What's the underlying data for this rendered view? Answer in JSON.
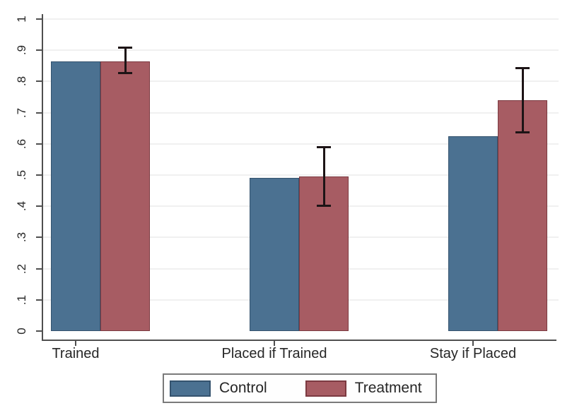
{
  "chart_data": {
    "type": "bar",
    "title": "",
    "categories": [
      "Trained",
      "Placed if Trained",
      "Stay if Placed"
    ],
    "series": [
      {
        "name": "Control",
        "color": "#4b7191",
        "border_color": "#35536e",
        "values": [
          0.865,
          0.49,
          0.625
        ]
      },
      {
        "name": "Treatment",
        "color": "#a75c63",
        "border_color": "#7c3a41",
        "values": [
          0.865,
          0.495,
          0.74
        ],
        "error_bars": [
          {
            "low": 0.825,
            "high": 0.91
          },
          {
            "low": 0.4,
            "high": 0.59
          },
          {
            "low": 0.635,
            "high": 0.845
          }
        ]
      }
    ],
    "xlabel": "",
    "ylabel": "",
    "ylim": [
      0,
      1
    ],
    "ytick_step": 0.1,
    "ytick_labels": [
      "0",
      ".1",
      ".2",
      ".3",
      ".4",
      ".5",
      ".6",
      ".7",
      ".8",
      ".9",
      "1"
    ],
    "grid": true,
    "gridline_color": "#f0f0f0",
    "axis_color": "#4f4f4f",
    "error_bar_color": "#1d1416",
    "text_color": "#262626",
    "legend_position": "bottom",
    "legend": [
      "Control",
      "Treatment"
    ]
  }
}
